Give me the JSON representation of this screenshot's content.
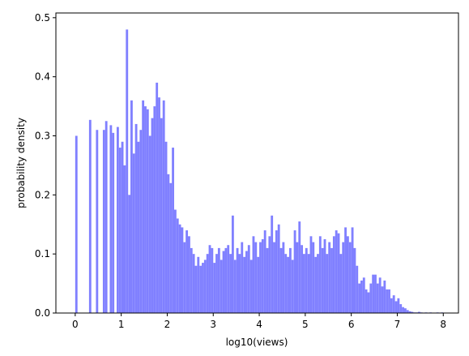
{
  "chart_data": {
    "type": "histogram",
    "xlabel": "log10(views)",
    "ylabel": "probability density",
    "color": "#8080ff",
    "bins": [
      0,
      0.05,
      0.1,
      0.15,
      0.2,
      0.25,
      0.3,
      0.35,
      0.4,
      0.45,
      0.5,
      0.55,
      0.6,
      0.65,
      0.7,
      0.75,
      0.8,
      0.85,
      0.9,
      0.95,
      1,
      1.05,
      1.1,
      1.15,
      1.2,
      1.25,
      1.3,
      1.35,
      1.4,
      1.45,
      1.5,
      1.55,
      1.6,
      1.65,
      1.7,
      1.75,
      1.8,
      1.85,
      1.9,
      1.95,
      2,
      2.05,
      2.1,
      2.15,
      2.2,
      2.25,
      2.3,
      2.35,
      2.4,
      2.45,
      2.5,
      2.55,
      2.6,
      2.65,
      2.7,
      2.75,
      2.8,
      2.85,
      2.9,
      2.95,
      3,
      3.05,
      3.1,
      3.15,
      3.2,
      3.25,
      3.3,
      3.35,
      3.4,
      3.45,
      3.5,
      3.55,
      3.6,
      3.65,
      3.7,
      3.75,
      3.8,
      3.85,
      3.9,
      3.95,
      4,
      4.05,
      4.1,
      4.15,
      4.2,
      4.25,
      4.3,
      4.35,
      4.4,
      4.45,
      4.5,
      4.55,
      4.6,
      4.65,
      4.7,
      4.75,
      4.8,
      4.85,
      4.9,
      4.95,
      5,
      5.05,
      5.1,
      5.15,
      5.2,
      5.25,
      5.3,
      5.35,
      5.4,
      5.45,
      5.5,
      5.55,
      5.6,
      5.65,
      5.7,
      5.75,
      5.8,
      5.85,
      5.9,
      5.95,
      6,
      6.05,
      6.1,
      6.15,
      6.2,
      6.25,
      6.3,
      6.35,
      6.4,
      6.45,
      6.5,
      6.55,
      6.6,
      6.65,
      6.7,
      6.75,
      6.8,
      6.85,
      6.9,
      6.95,
      7,
      7.05,
      7.1,
      7.15,
      7.2,
      7.25,
      7.3,
      7.35,
      7.4,
      7.45,
      7.5,
      7.55,
      7.6,
      7.65,
      7.7,
      7.75,
      7.8,
      7.85,
      7.9,
      7.95,
      8
    ],
    "values": [
      0.3,
      0,
      0,
      0,
      0,
      0,
      0.327,
      0,
      0,
      0.31,
      0,
      0,
      0.31,
      0.325,
      0,
      0.318,
      0.305,
      0,
      0.315,
      0.28,
      0.29,
      0.25,
      0.48,
      0.2,
      0.36,
      0.27,
      0.32,
      0.29,
      0.31,
      0.36,
      0.35,
      0.345,
      0.3,
      0.33,
      0.35,
      0.39,
      0.365,
      0.33,
      0.36,
      0.29,
      0.235,
      0.22,
      0.28,
      0.175,
      0.16,
      0.15,
      0.145,
      0.12,
      0.14,
      0.13,
      0.11,
      0.1,
      0.08,
      0.095,
      0.08,
      0.085,
      0.09,
      0.1,
      0.115,
      0.11,
      0.085,
      0.1,
      0.11,
      0.09,
      0.105,
      0.11,
      0.115,
      0.1,
      0.165,
      0.09,
      0.11,
      0.1,
      0.12,
      0.095,
      0.105,
      0.115,
      0.09,
      0.13,
      0.12,
      0.095,
      0.12,
      0.125,
      0.14,
      0.11,
      0.13,
      0.165,
      0.12,
      0.14,
      0.15,
      0.11,
      0.12,
      0.1,
      0.095,
      0.11,
      0.09,
      0.14,
      0.12,
      0.155,
      0.115,
      0.1,
      0.11,
      0.1,
      0.13,
      0.12,
      0.095,
      0.1,
      0.13,
      0.11,
      0.125,
      0.1,
      0.12,
      0.11,
      0.13,
      0.14,
      0.135,
      0.1,
      0.12,
      0.145,
      0.13,
      0.12,
      0.145,
      0.11,
      0.08,
      0.05,
      0.055,
      0.06,
      0.04,
      0.035,
      0.05,
      0.065,
      0.065,
      0.05,
      0.06,
      0.045,
      0.055,
      0.04,
      0.04,
      0.025,
      0.03,
      0.02,
      0.025,
      0.015,
      0.01,
      0.008,
      0.005,
      0.003,
      0.002,
      0.001,
      0.001,
      0.002,
      0.001,
      0,
      0.001,
      0,
      0.001,
      0,
      0,
      0.001,
      0,
      0.001
    ],
    "xlim": [
      -0.42,
      8.33
    ],
    "ylim": [
      0,
      0.508
    ],
    "xticks": [
      0,
      1,
      2,
      3,
      4,
      5,
      6,
      7,
      8
    ],
    "yticks": [
      {
        "value": 0,
        "label": "0.0"
      },
      0.1,
      0.2,
      0.3,
      0.4,
      0.5
    ]
  }
}
